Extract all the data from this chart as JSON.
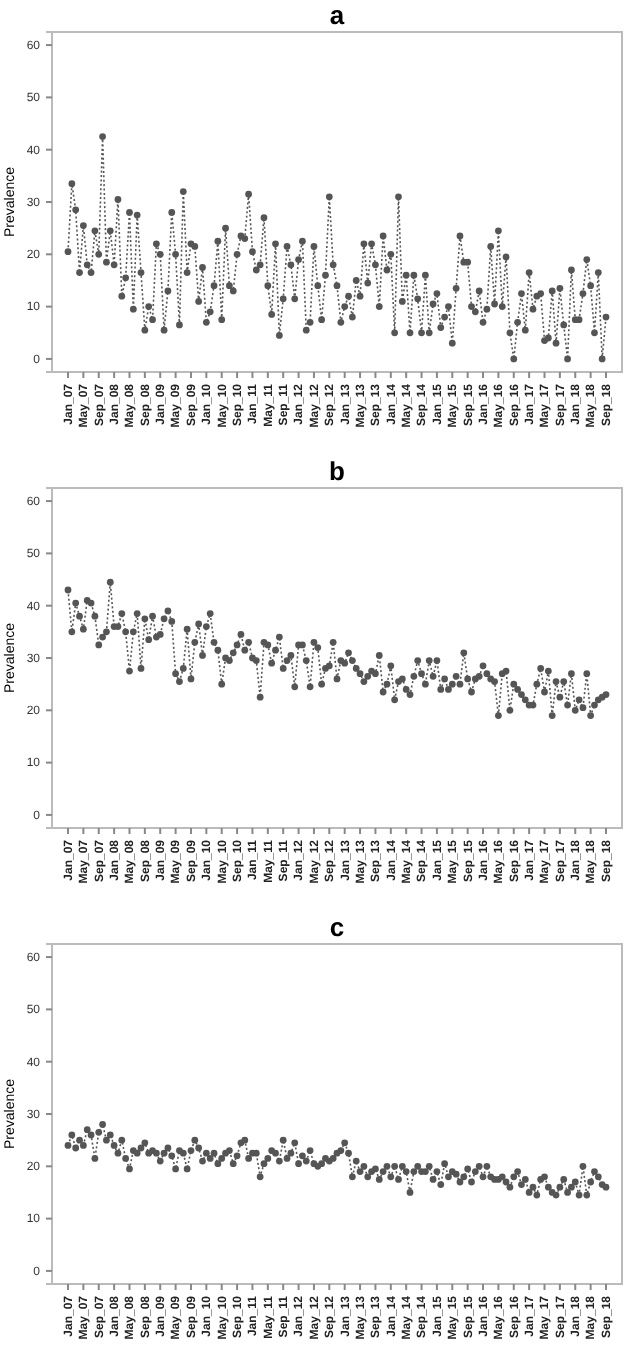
{
  "chart_data": [
    {
      "type": "line",
      "title": "a",
      "ylabel": "Prevalence",
      "marker": "circle",
      "line_style": "dotted",
      "grid": false,
      "ylim": [
        -2.5,
        62.5
      ],
      "yticks": [
        0,
        10,
        20,
        30,
        40,
        50,
        60
      ],
      "categories": [
        "Jan_07",
        null,
        null,
        null,
        "May_07",
        null,
        null,
        null,
        "Sep_07",
        null,
        null,
        null,
        "Jan_08",
        null,
        null,
        null,
        "May_08",
        null,
        null,
        null,
        "Sep_08",
        null,
        null,
        null,
        "Jan_09",
        null,
        null,
        null,
        "May_09",
        null,
        null,
        null,
        "Sep_09",
        null,
        null,
        null,
        "Jan_10",
        null,
        null,
        null,
        "May_10",
        null,
        null,
        null,
        "Sep_10",
        null,
        null,
        null,
        "Jan_11",
        null,
        null,
        null,
        "May_11",
        null,
        null,
        null,
        "Sep_11",
        null,
        null,
        null,
        "Jan_12",
        null,
        null,
        null,
        "May_12",
        null,
        null,
        null,
        "Sep_12",
        null,
        null,
        null,
        "Jan_13",
        null,
        null,
        null,
        "May_13",
        null,
        null,
        null,
        "Sep_13",
        null,
        null,
        null,
        "Jan_14",
        null,
        null,
        null,
        "May_14",
        null,
        null,
        null,
        "Sep_14",
        null,
        null,
        null,
        "Jan_15",
        null,
        null,
        null,
        "May_15",
        null,
        null,
        null,
        "Sep_15",
        null,
        null,
        null,
        "Jan_16",
        null,
        null,
        null,
        "May_16",
        null,
        null,
        null,
        "Sep_16",
        null,
        null,
        null,
        "Jan_17",
        null,
        null,
        null,
        "May_17",
        null,
        null,
        null,
        "Sep_17",
        null,
        null,
        null,
        "Jan_18",
        null,
        null,
        null,
        "May_18",
        null,
        null,
        null,
        "Sep_18"
      ],
      "series": [
        {
          "color": "#555555",
          "values": [
            20.5,
            33.5,
            28.5,
            16.5,
            25.5,
            18,
            16.5,
            24.5,
            20,
            42.5,
            18.5,
            24.5,
            18,
            30.5,
            12,
            15.5,
            28,
            9.5,
            27.5,
            16.5,
            5.5,
            10,
            7.5,
            22,
            20,
            5.5,
            13,
            28,
            20,
            6.5,
            32,
            16.5,
            22,
            21.5,
            11,
            17.5,
            7,
            9,
            14,
            22.5,
            7.5,
            25,
            14,
            13,
            20,
            23.5,
            23,
            31.5,
            20.5,
            17,
            18,
            27,
            14,
            8.5,
            22,
            4.5,
            11.5,
            21.5,
            18,
            11.5,
            19,
            22.5,
            5.5,
            7,
            21.5,
            14,
            7.5,
            16,
            31,
            18,
            14,
            7,
            10,
            12,
            8,
            15,
            12,
            22,
            14.5,
            22,
            18,
            10,
            23.5,
            17,
            20,
            5,
            31,
            11,
            16,
            5,
            16,
            11.5,
            5,
            16,
            5,
            10.5,
            12.5,
            6,
            8,
            10,
            3,
            13.5,
            23.5,
            18.5,
            18.5,
            10,
            9,
            13,
            7,
            9.5,
            21.5,
            10.5,
            24.5,
            10,
            19.5,
            5,
            0,
            7,
            12.5,
            5.5,
            16.5,
            9.5,
            12,
            12.5,
            3.5,
            4,
            13,
            3,
            13.5,
            6.5,
            0,
            17,
            7.5,
            7.5,
            12.5,
            19,
            14,
            5,
            16.5,
            0,
            8
          ]
        }
      ]
    },
    {
      "type": "line",
      "title": "b",
      "ylabel": "Prevalence",
      "marker": "circle",
      "line_style": "dotted",
      "grid": false,
      "ylim": [
        -2.5,
        62.5
      ],
      "yticks": [
        0,
        10,
        20,
        30,
        40,
        50,
        60
      ],
      "categories": [
        "Jan_07",
        null,
        null,
        null,
        "May_07",
        null,
        null,
        null,
        "Sep_07",
        null,
        null,
        null,
        "Jan_08",
        null,
        null,
        null,
        "May_08",
        null,
        null,
        null,
        "Sep_08",
        null,
        null,
        null,
        "Jan_09",
        null,
        null,
        null,
        "May_09",
        null,
        null,
        null,
        "Sep_09",
        null,
        null,
        null,
        "Jan_10",
        null,
        null,
        null,
        "May_10",
        null,
        null,
        null,
        "Sep_10",
        null,
        null,
        null,
        "Jan_11",
        null,
        null,
        null,
        "May_11",
        null,
        null,
        null,
        "Sep_11",
        null,
        null,
        null,
        "Jan_12",
        null,
        null,
        null,
        "May_12",
        null,
        null,
        null,
        "Sep_12",
        null,
        null,
        null,
        "Jan_13",
        null,
        null,
        null,
        "May_13",
        null,
        null,
        null,
        "Sep_13",
        null,
        null,
        null,
        "Jan_14",
        null,
        null,
        null,
        "May_14",
        null,
        null,
        null,
        "Sep_14",
        null,
        null,
        null,
        "Jan_15",
        null,
        null,
        null,
        "May_15",
        null,
        null,
        null,
        "Sep_15",
        null,
        null,
        null,
        "Jan_16",
        null,
        null,
        null,
        "May_16",
        null,
        null,
        null,
        "Sep_16",
        null,
        null,
        null,
        "Jan_17",
        null,
        null,
        null,
        "May_17",
        null,
        null,
        null,
        "Sep_17",
        null,
        null,
        null,
        "Jan_18",
        null,
        null,
        null,
        "May_18",
        null,
        null,
        null,
        "Sep_18"
      ],
      "series": [
        {
          "color": "#555555",
          "values": [
            43,
            35,
            40.5,
            38,
            35.5,
            41,
            40.5,
            38,
            32.5,
            34,
            35,
            44.5,
            36,
            36,
            38.5,
            35,
            27.5,
            35,
            38.5,
            28,
            37.5,
            33.5,
            38,
            34,
            34.5,
            37.5,
            39,
            37,
            27,
            25.5,
            28,
            35.5,
            26,
            33,
            36.5,
            30.5,
            36,
            38.5,
            33,
            31.5,
            25,
            30,
            29.5,
            31,
            32.5,
            34.5,
            31.5,
            33,
            30,
            29.5,
            22.5,
            33,
            32.5,
            29,
            31.5,
            34,
            28,
            29.5,
            30.5,
            24.5,
            32.5,
            32.5,
            29.5,
            24.5,
            33,
            32,
            25,
            28,
            28.5,
            33,
            26,
            29.5,
            29,
            31,
            29.5,
            28,
            27,
            25.5,
            26.5,
            27.5,
            27,
            30.5,
            23.5,
            25,
            28.5,
            22,
            25.5,
            26,
            24,
            23,
            26.5,
            29.5,
            27,
            25,
            29.5,
            26.5,
            29.5,
            24,
            26,
            24,
            25,
            26.5,
            25,
            31,
            26,
            23.5,
            26,
            26.5,
            28.5,
            27,
            26,
            25.5,
            19,
            27,
            27.5,
            20,
            25,
            24,
            23,
            22,
            21,
            21,
            25,
            28,
            23.5,
            27.5,
            19,
            25.5,
            22.5,
            25.5,
            21,
            27,
            20,
            22,
            20.5,
            27,
            19,
            21,
            22,
            22.5,
            23
          ]
        }
      ]
    },
    {
      "type": "line",
      "title": "c",
      "ylabel": "Prevalence",
      "marker": "circle",
      "line_style": "dotted",
      "grid": false,
      "ylim": [
        -2.5,
        62.5
      ],
      "yticks": [
        0,
        10,
        20,
        30,
        40,
        50,
        60
      ],
      "categories": [
        "Jan_07",
        null,
        null,
        null,
        "May_07",
        null,
        null,
        null,
        "Sep_07",
        null,
        null,
        null,
        "Jan_08",
        null,
        null,
        null,
        "May_08",
        null,
        null,
        null,
        "Sep_08",
        null,
        null,
        null,
        "Jan_09",
        null,
        null,
        null,
        "May_09",
        null,
        null,
        null,
        "Sep_09",
        null,
        null,
        null,
        "Jan_10",
        null,
        null,
        null,
        "May_10",
        null,
        null,
        null,
        "Sep_10",
        null,
        null,
        null,
        "Jan_11",
        null,
        null,
        null,
        "May_11",
        null,
        null,
        null,
        "Sep_11",
        null,
        null,
        null,
        "Jan_12",
        null,
        null,
        null,
        "May_12",
        null,
        null,
        null,
        "Sep_12",
        null,
        null,
        null,
        "Jan_13",
        null,
        null,
        null,
        "May_13",
        null,
        null,
        null,
        "Sep_13",
        null,
        null,
        null,
        "Jan_14",
        null,
        null,
        null,
        "May_14",
        null,
        null,
        null,
        "Sep_14",
        null,
        null,
        null,
        "Jan_15",
        null,
        null,
        null,
        "May_15",
        null,
        null,
        null,
        "Sep_15",
        null,
        null,
        null,
        "Jan_16",
        null,
        null,
        null,
        "May_16",
        null,
        null,
        null,
        "Sep_16",
        null,
        null,
        null,
        "Jan_17",
        null,
        null,
        null,
        "May_17",
        null,
        null,
        null,
        "Sep_17",
        null,
        null,
        null,
        "Jan_18",
        null,
        null,
        null,
        "May_18",
        null,
        null,
        null,
        "Sep_18"
      ],
      "series": [
        {
          "color": "#555555",
          "values": [
            24,
            26,
            23.5,
            25,
            24,
            27,
            26,
            21.5,
            26.5,
            28,
            25,
            26,
            24,
            22.5,
            25,
            21.5,
            19.5,
            23,
            22.5,
            23.5,
            24.5,
            22.5,
            23,
            22.5,
            21,
            22.5,
            23.5,
            22,
            19.5,
            23,
            22.5,
            19.5,
            23,
            25,
            23.5,
            21,
            22.5,
            21.5,
            22.5,
            20.5,
            21.5,
            22.5,
            23,
            20.5,
            22,
            24.5,
            25,
            21.5,
            22.5,
            22.5,
            18,
            20.5,
            21.5,
            23,
            22.5,
            21,
            25,
            21.5,
            22.5,
            24.5,
            20.5,
            22,
            21,
            23,
            20.5,
            20,
            20.5,
            21.5,
            21,
            21.5,
            22.5,
            23,
            24.5,
            22.5,
            18,
            21,
            19,
            20,
            18,
            19,
            19.5,
            17.5,
            19,
            20,
            18,
            20,
            17.5,
            20,
            19,
            15,
            19,
            20,
            19,
            19,
            20,
            17.5,
            19,
            16.5,
            20.5,
            18,
            19,
            18.5,
            17,
            18,
            19.5,
            17,
            19,
            20,
            18,
            20,
            18,
            17.5,
            17.5,
            18,
            17,
            16,
            18,
            19,
            16.5,
            17.5,
            15,
            16,
            14.5,
            17.5,
            18,
            16,
            15,
            14.5,
            16,
            17.5,
            15,
            16,
            17,
            14.5,
            20,
            14.5,
            17,
            19,
            18,
            16.5,
            16
          ]
        }
      ]
    }
  ]
}
